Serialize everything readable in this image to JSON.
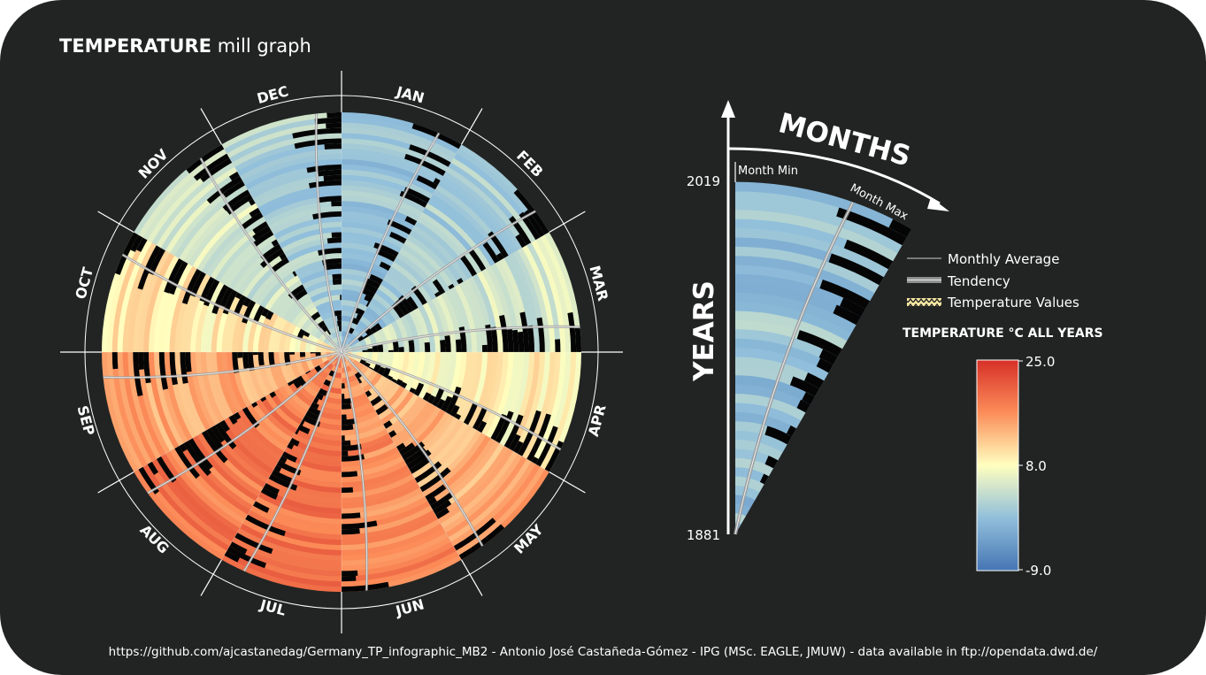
{
  "title": {
    "bold": "TEMPERATURE",
    "rest": "mill graph"
  },
  "months": [
    "JAN",
    "FEB",
    "MAR",
    "APR",
    "MAY",
    "JUN",
    "JUL",
    "AUG",
    "SEP",
    "OCT",
    "NOV",
    "DEC"
  ],
  "explainer": {
    "months_label": "MONTHS",
    "years_label": "YEARS",
    "month_min_label": "Month Min",
    "month_max_label": "Month Max",
    "year_top": "2019",
    "year_bottom": "1881"
  },
  "legend": {
    "items": [
      {
        "label": "Monthly Average",
        "symbol": "thin-line"
      },
      {
        "label": "Tendency",
        "symbol": "grey-band"
      },
      {
        "label": "Temperature Values",
        "symbol": "yellow-hatch"
      }
    ],
    "colorbar_title": "TEMPERATURE °C ALL YEARS",
    "colorbar_ticks": [
      "25.0",
      "8.0",
      "-9.0"
    ]
  },
  "footer": "https://github.com/ajcastanedag/Germany_TP_infographic_MB2  -  Antonio José Castañeda-Gómez - IPG (MSc. EAGLE, JMUW)  - data available in ftp://opendata.dwd.de/",
  "colors": {
    "background": "#222423",
    "cold": "#4575b4",
    "mid": "#ffffbf",
    "warm": "#d73027",
    "text": "#ffffff"
  },
  "chart_data": {
    "type": "heatmap",
    "layout": "radial",
    "categories": [
      "JAN",
      "FEB",
      "MAR",
      "APR",
      "MAY",
      "JUN",
      "JUL",
      "AUG",
      "SEP",
      "OCT",
      "NOV",
      "DEC"
    ],
    "years": [
      1881,
      2019
    ],
    "monthly_mean_temperature_c": [
      -0.5,
      0.5,
      3.8,
      8.2,
      12.8,
      16.0,
      17.8,
      17.2,
      13.6,
      8.9,
      4.0,
      0.8
    ],
    "colorbar": {
      "min": -9.0,
      "mid": 8.0,
      "max": 25.0,
      "unit": "°C"
    },
    "series": [
      {
        "name": "Monthly Average"
      },
      {
        "name": "Tendency"
      },
      {
        "name": "Temperature Values"
      }
    ]
  }
}
